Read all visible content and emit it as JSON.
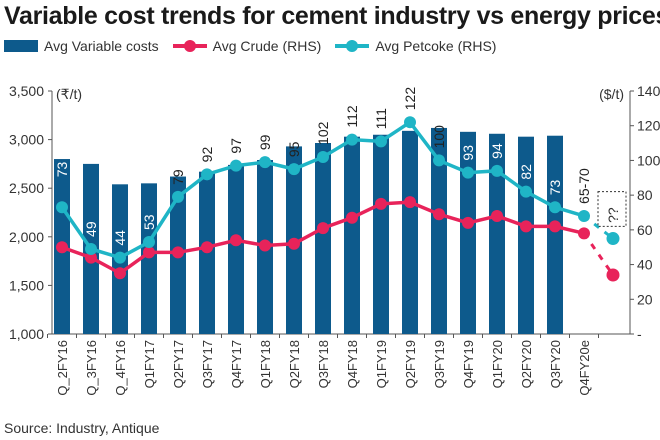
{
  "chart_data": {
    "type": "bar+line",
    "title": "Variable cost trends for cement industry vs energy prices",
    "source": "Source: Industry, Antique",
    "left_unit": "(₹/t)",
    "right_unit": "($/t)",
    "ylim_left": [
      1000,
      3500
    ],
    "ylim_right": [
      0,
      140
    ],
    "left_ticks": [
      "1,000",
      "1,500",
      "2,000",
      "2,500",
      "3,000",
      "3,500"
    ],
    "left_tick_values": [
      1000,
      1500,
      2000,
      2500,
      3000,
      3500
    ],
    "right_ticks": [
      "-",
      "20",
      "40",
      "60",
      "80",
      "100",
      "120",
      "140"
    ],
    "right_tick_values": [
      0,
      20,
      40,
      60,
      80,
      100,
      120,
      140
    ],
    "categories": [
      "Q_2FY16",
      "Q_3FY16",
      "Q_4FY16",
      "Q1FY17",
      "Q2FY17",
      "Q3FY17",
      "Q4FY17",
      "Q1FY18",
      "Q2FY18",
      "Q3FY18",
      "Q4FY18",
      "Q1FY19",
      "Q2FY19",
      "Q3FY19",
      "Q4FY19",
      "Q1FY20",
      "Q2FY20",
      "Q3FY20",
      "Q4FY20e",
      ""
    ],
    "series": [
      {
        "name": "Avg Variable costs",
        "type": "bar",
        "axis": "left",
        "color": "#0d5a8c",
        "values": [
          2800,
          2750,
          2540,
          2550,
          2620,
          2670,
          2740,
          2790,
          2930,
          2965,
          3030,
          3050,
          3090,
          3120,
          3080,
          3060,
          3030,
          3040,
          null,
          null
        ]
      },
      {
        "name": "Avg Crude (RHS)",
        "type": "line",
        "axis": "right",
        "color": "#e8235a",
        "values": [
          50,
          44,
          35,
          47,
          47,
          50,
          54,
          51,
          52,
          61,
          67,
          75,
          76,
          69,
          64,
          68,
          62,
          62,
          58,
          34
        ]
      },
      {
        "name": "Avg Petcoke (RHS)",
        "type": "line",
        "axis": "right",
        "color": "#1fb5c6",
        "values": [
          73,
          49,
          44,
          53,
          79,
          92,
          97,
          99,
          95,
          102,
          112,
          111,
          122,
          100,
          93,
          94,
          82,
          73,
          68,
          55
        ],
        "labels": [
          "73",
          "49",
          "44",
          "53",
          "79",
          "92",
          "97",
          "99",
          "95",
          "102",
          "112",
          "111",
          "122",
          "100",
          "93",
          "94",
          "82",
          "73",
          "65-70",
          "??"
        ]
      }
    ],
    "forecast_from_index": 18,
    "grid": false,
    "legend": "top-left"
  }
}
